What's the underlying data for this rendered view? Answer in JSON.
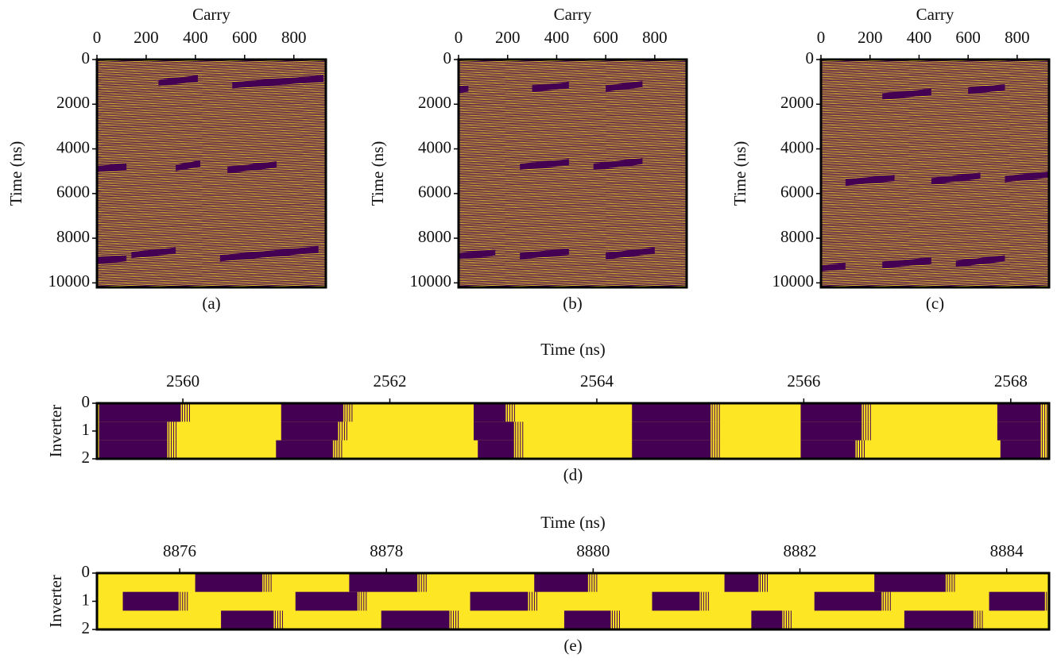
{
  "chart_data": [
    {
      "type": "heatmap",
      "caption": "(a)",
      "xlabel": "Carry",
      "ylabel": "Time (ns)",
      "xlim": [
        0,
        930
      ],
      "xticks": [
        0,
        200,
        400,
        600,
        800
      ],
      "ylim": [
        0,
        10200
      ],
      "yticks": [
        0,
        2000,
        4000,
        6000,
        8000,
        10000
      ],
      "color_on": "#fde725",
      "color_off": "#440154",
      "dark_streaks": [
        {
          "carry": [
            250,
            410
          ],
          "time": [
            1050,
            850
          ]
        },
        {
          "carry": [
            550,
            920
          ],
          "time": [
            1150,
            850
          ]
        },
        {
          "carry": [
            0,
            120
          ],
          "time": [
            4900,
            4800
          ]
        },
        {
          "carry": [
            320,
            420
          ],
          "time": [
            4850,
            4650
          ]
        },
        {
          "carry": [
            530,
            730
          ],
          "time": [
            4950,
            4700
          ]
        },
        {
          "carry": [
            0,
            120
          ],
          "time": [
            9000,
            8900
          ]
        },
        {
          "carry": [
            140,
            320
          ],
          "time": [
            8750,
            8550
          ]
        },
        {
          "carry": [
            500,
            900
          ],
          "time": [
            8900,
            8500
          ]
        }
      ]
    },
    {
      "type": "heatmap",
      "caption": "(b)",
      "xlabel": "Carry",
      "ylabel": "Time (ns)",
      "xlim": [
        0,
        930
      ],
      "xticks": [
        0,
        200,
        400,
        600,
        800
      ],
      "ylim": [
        0,
        10200
      ],
      "yticks": [
        0,
        2000,
        4000,
        6000,
        8000,
        10000
      ],
      "color_on": "#fde725",
      "color_off": "#440154",
      "dark_streaks": [
        {
          "carry": [
            0,
            40
          ],
          "time": [
            1350,
            1300
          ]
        },
        {
          "carry": [
            300,
            450
          ],
          "time": [
            1300,
            1150
          ]
        },
        {
          "carry": [
            600,
            750
          ],
          "time": [
            1300,
            1100
          ]
        },
        {
          "carry": [
            250,
            450
          ],
          "time": [
            4800,
            4600
          ]
        },
        {
          "carry": [
            550,
            750
          ],
          "time": [
            4800,
            4550
          ]
        },
        {
          "carry": [
            0,
            150
          ],
          "time": [
            8800,
            8650
          ]
        },
        {
          "carry": [
            250,
            450
          ],
          "time": [
            8800,
            8600
          ]
        },
        {
          "carry": [
            600,
            800
          ],
          "time": [
            8800,
            8550
          ]
        }
      ]
    },
    {
      "type": "heatmap",
      "caption": "(c)",
      "xlabel": "Carry",
      "ylabel": "Time (ns)",
      "xlim": [
        0,
        930
      ],
      "xticks": [
        0,
        200,
        400,
        600,
        800
      ],
      "ylim": [
        0,
        10200
      ],
      "yticks": [
        0,
        2000,
        4000,
        6000,
        8000,
        10000
      ],
      "color_on": "#fde725",
      "color_off": "#440154",
      "dark_streaks": [
        {
          "carry": [
            250,
            450
          ],
          "time": [
            1650,
            1450
          ]
        },
        {
          "carry": [
            600,
            750
          ],
          "time": [
            1400,
            1250
          ]
        },
        {
          "carry": [
            100,
            300
          ],
          "time": [
            5500,
            5300
          ]
        },
        {
          "carry": [
            450,
            650
          ],
          "time": [
            5450,
            5200
          ]
        },
        {
          "carry": [
            750,
            930
          ],
          "time": [
            5350,
            5150
          ]
        },
        {
          "carry": [
            0,
            100
          ],
          "time": [
            9350,
            9250
          ]
        },
        {
          "carry": [
            250,
            450
          ],
          "time": [
            9200,
            9000
          ]
        },
        {
          "carry": [
            550,
            750
          ],
          "time": [
            9150,
            8900
          ]
        }
      ]
    },
    {
      "type": "raster",
      "caption": "(d)",
      "xlabel": "Time (ns)",
      "ylabel": "Inverter",
      "xlim": [
        2559.17,
        2568.37
      ],
      "xticks": [
        2560,
        2562,
        2564,
        2566,
        2568
      ],
      "ylim": [
        0,
        2
      ],
      "yticks": [
        0,
        1,
        2
      ],
      "color_on": "#fde725",
      "color_off": "#440154",
      "dark_intervals": [
        [
          [
            2559.19,
            2559.98
          ],
          [
            2560.95,
            2561.55
          ],
          [
            2562.81,
            2563.12
          ],
          [
            2564.34,
            2565.1
          ],
          [
            2565.97,
            2566.56
          ],
          [
            2567.87,
            2568.29
          ]
        ],
        [
          [
            2559.19,
            2559.85
          ],
          [
            2560.95,
            2561.5
          ],
          [
            2562.81,
            2563.2
          ],
          [
            2564.34,
            2565.1
          ],
          [
            2565.97,
            2566.56
          ],
          [
            2567.87,
            2568.29
          ]
        ],
        [
          [
            2559.19,
            2559.85
          ],
          [
            2560.9,
            2561.45
          ],
          [
            2562.85,
            2563.2
          ],
          [
            2564.34,
            2565.1
          ],
          [
            2565.97,
            2566.5
          ],
          [
            2567.9,
            2568.29
          ]
        ]
      ]
    },
    {
      "type": "raster",
      "caption": "(e)",
      "xlabel": "Time (ns)",
      "ylabel": "Inverter",
      "xlim": [
        8875.2,
        8884.41
      ],
      "xticks": [
        8876,
        8878,
        8880,
        8882,
        8884
      ],
      "ylim": [
        0,
        2
      ],
      "yticks": [
        0,
        1,
        2
      ],
      "color_on": "#fde725",
      "color_off": "#440154",
      "dark_intervals": [
        [
          [
            8876.15,
            8876.8
          ],
          [
            8877.64,
            8878.3
          ],
          [
            8879.43,
            8879.95
          ],
          [
            8881.27,
            8881.6
          ],
          [
            8882.72,
            8883.41
          ]
        ],
        [
          [
            8875.45,
            8875.99
          ],
          [
            8877.12,
            8877.72
          ],
          [
            8878.81,
            8879.37
          ],
          [
            8880.57,
            8881.03
          ],
          [
            8882.14,
            8882.79
          ],
          [
            8883.83,
            8884.37
          ]
        ],
        [
          [
            8876.4,
            8876.91
          ],
          [
            8877.95,
            8878.61
          ],
          [
            8879.72,
            8880.17
          ],
          [
            8881.53,
            8881.83
          ],
          [
            8883.01,
            8883.68
          ]
        ]
      ]
    }
  ]
}
